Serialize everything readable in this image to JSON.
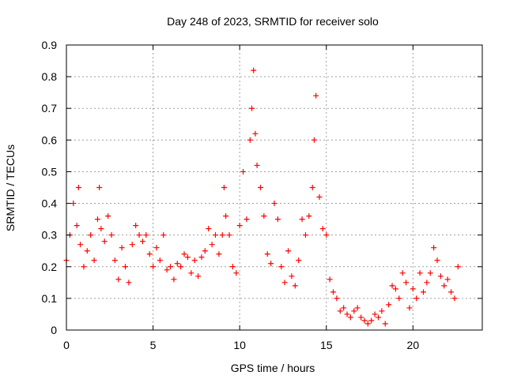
{
  "chart_data": {
    "type": "scatter",
    "title": "Day 248 of 2023, SRMTID for receiver solo",
    "xlabel": "GPS time / hours",
    "ylabel": "SRMTID / TECUs",
    "xlim": [
      0,
      24
    ],
    "ylim": [
      0,
      0.9
    ],
    "x_ticks": [
      0,
      5,
      10,
      15,
      20
    ],
    "x_tick_labels": [
      "0",
      "5",
      "10",
      "15",
      "20"
    ],
    "y_ticks": [
      0,
      0.1,
      0.2,
      0.3,
      0.4,
      0.5,
      0.6,
      0.7,
      0.8,
      0.9
    ],
    "y_tick_labels": [
      "0",
      "0.1",
      "0.2",
      "0.3",
      "0.4",
      "0.5",
      "0.6",
      "0.7",
      "0.8",
      "0.9"
    ],
    "grid": true,
    "marker": "+",
    "series": [
      {
        "name": "SRMTID",
        "color": "#ff0000",
        "x": [
          0.0,
          0.2,
          0.4,
          0.6,
          0.7,
          0.8,
          1.0,
          1.2,
          1.4,
          1.6,
          1.8,
          1.9,
          2.0,
          2.2,
          2.4,
          2.6,
          2.8,
          3.0,
          3.2,
          3.4,
          3.6,
          3.8,
          4.0,
          4.2,
          4.4,
          4.6,
          4.8,
          5.0,
          5.2,
          5.4,
          5.6,
          5.8,
          6.0,
          6.2,
          6.4,
          6.6,
          6.8,
          7.0,
          7.2,
          7.4,
          7.6,
          7.8,
          8.0,
          8.2,
          8.4,
          8.6,
          8.8,
          9.0,
          9.1,
          9.2,
          9.4,
          9.6,
          9.8,
          10.0,
          10.2,
          10.4,
          10.6,
          10.7,
          10.8,
          10.9,
          11.0,
          11.2,
          11.4,
          11.6,
          11.8,
          12.0,
          12.2,
          12.4,
          12.6,
          12.8,
          13.0,
          13.2,
          13.4,
          13.6,
          13.8,
          14.0,
          14.2,
          14.3,
          14.4,
          14.6,
          14.8,
          15.0,
          15.2,
          15.4,
          15.6,
          15.8,
          16.0,
          16.2,
          16.4,
          16.6,
          16.8,
          17.0,
          17.2,
          17.4,
          17.6,
          17.8,
          18.0,
          18.2,
          18.4,
          18.6,
          18.8,
          19.0,
          19.2,
          19.4,
          19.6,
          19.8,
          20.0,
          20.2,
          20.4,
          20.6,
          20.8,
          21.0,
          21.2,
          21.4,
          21.6,
          21.8,
          22.0,
          22.2,
          22.4,
          22.6
        ],
        "y": [
          0.22,
          0.3,
          0.4,
          0.33,
          0.45,
          0.27,
          0.2,
          0.25,
          0.3,
          0.22,
          0.35,
          0.45,
          0.32,
          0.28,
          0.36,
          0.3,
          0.22,
          0.16,
          0.26,
          0.2,
          0.15,
          0.27,
          0.33,
          0.3,
          0.28,
          0.3,
          0.24,
          0.2,
          0.26,
          0.22,
          0.3,
          0.19,
          0.2,
          0.16,
          0.21,
          0.2,
          0.24,
          0.23,
          0.18,
          0.22,
          0.17,
          0.23,
          0.25,
          0.32,
          0.27,
          0.3,
          0.24,
          0.3,
          0.45,
          0.36,
          0.3,
          0.2,
          0.18,
          0.33,
          0.5,
          0.35,
          0.6,
          0.7,
          0.82,
          0.62,
          0.52,
          0.45,
          0.36,
          0.24,
          0.21,
          0.4,
          0.35,
          0.2,
          0.15,
          0.25,
          0.17,
          0.14,
          0.22,
          0.35,
          0.3,
          0.36,
          0.45,
          0.6,
          0.74,
          0.42,
          0.32,
          0.3,
          0.16,
          0.12,
          0.1,
          0.06,
          0.07,
          0.05,
          0.04,
          0.06,
          0.07,
          0.04,
          0.03,
          0.02,
          0.03,
          0.05,
          0.04,
          0.06,
          0.02,
          0.08,
          0.14,
          0.13,
          0.1,
          0.18,
          0.15,
          0.07,
          0.13,
          0.1,
          0.18,
          0.12,
          0.15,
          0.18,
          0.26,
          0.22,
          0.17,
          0.14,
          0.16,
          0.12,
          0.1,
          0.2
        ]
      }
    ]
  }
}
